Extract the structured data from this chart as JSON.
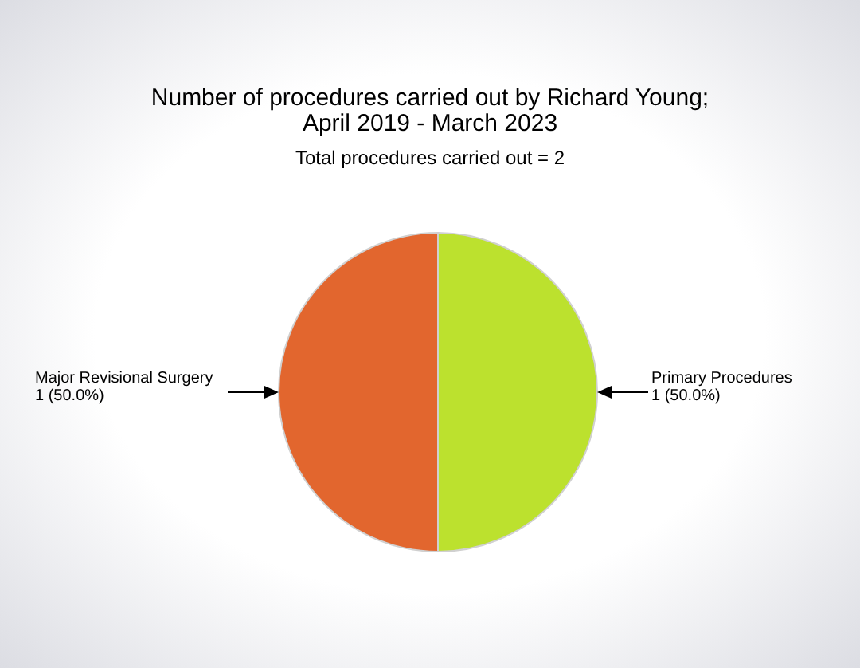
{
  "chart_data": {
    "type": "pie",
    "title": "Number of procedures carried out by Richard Young;\nApril 2019 - March 2023",
    "subtitle": "Total procedures carried out = 2",
    "categories": [
      "Major Revisional Surgery",
      "Primary Procedures"
    ],
    "values": [
      1,
      1
    ],
    "colors": [
      "#e2662e",
      "#bce12e"
    ],
    "value_labels": [
      "1 (50.0%)",
      "1 (50.0%)"
    ]
  }
}
